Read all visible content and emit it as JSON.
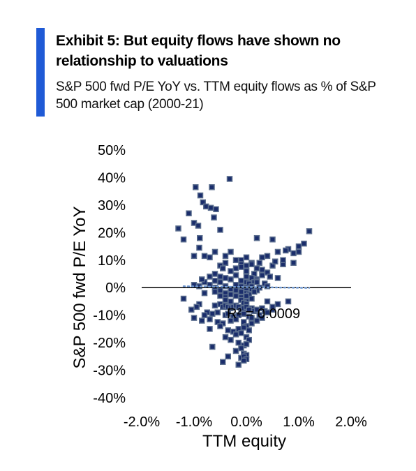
{
  "header": {
    "title": "Exhibit 5: But equity flows have shown no relationship to valuations",
    "subtitle": "S&P 500 fwd P/E YoY vs. TTM equity flows as % of S&P 500 market cap (2000-21)"
  },
  "colors": {
    "accent": "#1f5ad6",
    "marker_fill": "#1a2d6b",
    "marker_edge": "#5b6e8e",
    "trend": "#6f97cf"
  },
  "chart_data": {
    "type": "scatter",
    "title": "",
    "xlabel": "TTM equity",
    "ylabel": "S&P 500 fwd P/E YoY",
    "xlim": [
      -0.02,
      0.02
    ],
    "ylim": [
      -0.4,
      0.5
    ],
    "x_ticks": [
      "-2.0%",
      "-1.0%",
      "0.0%",
      "1.0%",
      "2.0%"
    ],
    "y_ticks": [
      "50%",
      "40%",
      "30%",
      "20%",
      "10%",
      "0%",
      "-10%",
      "-20%",
      "-30%",
      "-40%"
    ],
    "annotation": "R² = 0.0009",
    "trendline": {
      "x": [
        -0.012,
        0.012
      ],
      "y": [
        0.005,
        -0.001
      ]
    },
    "grid": false,
    "series": [
      {
        "x": [
          -0.0032,
          -0.0097,
          -0.0066,
          -0.011,
          -0.0088,
          -0.0083,
          -0.0077,
          -0.0068,
          -0.0058,
          -0.0062,
          -0.012,
          -0.01,
          -0.0092,
          -0.0089,
          -0.005,
          -0.013,
          -0.009,
          -0.006,
          -0.008,
          -0.01,
          -0.007,
          -0.004,
          -0.003,
          -0.001,
          0.002,
          0.005,
          0.008,
          0.01,
          0.012,
          0.011,
          0.01,
          0.009,
          0.0075,
          0.006,
          0.004,
          0.003,
          0.001,
          0.0,
          -0.001,
          -0.002,
          0.0,
          0.001,
          0.0025,
          0.005,
          0.0055,
          0.007,
          0.009,
          -0.005,
          -0.0045,
          -0.004,
          -0.003,
          -0.002,
          -0.001,
          0.0,
          0.0015,
          0.002,
          0.003,
          0.004,
          -0.006,
          -0.007,
          -0.005,
          -0.004,
          -0.002,
          0.0,
          0.001,
          0.002,
          0.003,
          0.0045,
          0.006,
          -0.008,
          -0.0085,
          -0.006,
          -0.005,
          -0.003,
          -0.001,
          0.0,
          0.0005,
          0.0015,
          0.002,
          0.0035,
          -0.01,
          -0.009,
          -0.007,
          -0.006,
          -0.004,
          -0.002,
          -0.001,
          0.0,
          0.001,
          0.0025,
          0.004,
          -0.006,
          -0.005,
          -0.003,
          -0.002,
          -0.0005,
          0.0,
          0.001,
          0.002,
          -0.008,
          -0.006,
          -0.004,
          -0.003,
          -0.001,
          0.0,
          0.0005,
          0.0015,
          -0.005,
          -0.004,
          -0.002,
          -0.001,
          0.0,
          0.001,
          -0.004,
          -0.003,
          -0.001,
          0.0,
          -0.0005,
          0.0,
          -0.009,
          -0.006,
          -0.005,
          -0.0045,
          -0.004,
          -0.0035,
          -0.003,
          -0.0025,
          -0.002,
          -0.0015,
          -0.001,
          -0.0005,
          0.0,
          0.0005,
          0.001,
          0.0015,
          0.002,
          0.003,
          0.0035,
          0.005,
          -0.0075,
          -0.0065,
          -0.0055,
          -0.004,
          -0.0035,
          -0.0025,
          -0.0015,
          -0.0005,
          0.0005,
          0.001,
          0.0025,
          0.004,
          -0.01,
          -0.0085,
          -0.007,
          -0.0055,
          -0.0045,
          -0.003,
          -0.002,
          -0.0005,
          0.0,
          0.001,
          0.002,
          0.003,
          -0.007,
          -0.005,
          -0.0035,
          -0.0025,
          -0.0015,
          -0.0005,
          0.0005,
          -0.004,
          -0.002,
          -0.001,
          0.0,
          0.0005,
          -0.003,
          -0.0015,
          -0.0005,
          0.0,
          -0.002,
          -0.001,
          -0.0005,
          0.0,
          -0.001,
          -0.0005,
          0.0,
          -0.0015,
          -0.0005,
          -0.012,
          -0.0105,
          -0.0095,
          -0.008,
          -0.0065,
          0.0,
          0.002,
          0.004,
          0.006,
          0.008,
          0.007,
          0.005,
          -0.0045,
          -0.0035,
          0.0005
        ],
        "y": [
          0.395,
          0.365,
          0.365,
          0.27,
          0.335,
          0.31,
          0.295,
          0.29,
          0.285,
          0.255,
          0.175,
          0.235,
          0.225,
          0.18,
          0.21,
          0.215,
          0.145,
          0.13,
          0.115,
          0.115,
          0.11,
          0.115,
          0.13,
          0.1,
          0.18,
          0.175,
          0.14,
          0.13,
          0.205,
          0.16,
          0.15,
          0.125,
          0.135,
          0.13,
          0.115,
          0.11,
          0.09,
          0.08,
          0.085,
          0.1,
          0.11,
          0.085,
          0.09,
          0.08,
          0.095,
          0.085,
          0.09,
          0.08,
          0.07,
          0.09,
          0.06,
          0.07,
          0.075,
          0.06,
          0.05,
          0.07,
          0.065,
          0.055,
          0.05,
          0.04,
          0.04,
          0.035,
          0.045,
          0.04,
          0.035,
          0.03,
          0.045,
          0.04,
          0.035,
          0.02,
          0.03,
          0.025,
          0.02,
          0.03,
          0.025,
          0.02,
          0.015,
          0.02,
          0.025,
          0.015,
          0.01,
          0.005,
          0.01,
          0.0,
          0.005,
          0.01,
          0.005,
          0.0,
          0.005,
          0.0,
          0.005,
          -0.005,
          -0.01,
          -0.005,
          -0.01,
          -0.005,
          -0.01,
          -0.005,
          -0.01,
          -0.02,
          -0.015,
          -0.02,
          -0.025,
          -0.015,
          -0.02,
          -0.025,
          -0.015,
          -0.03,
          -0.035,
          -0.03,
          -0.035,
          -0.03,
          -0.04,
          -0.045,
          -0.05,
          -0.045,
          -0.05,
          -0.055,
          -0.06,
          -0.06,
          -0.065,
          -0.06,
          -0.07,
          -0.065,
          -0.07,
          -0.075,
          -0.07,
          -0.065,
          -0.07,
          -0.08,
          -0.075,
          -0.07,
          -0.08,
          -0.075,
          -0.085,
          -0.08,
          -0.075,
          -0.085,
          -0.08,
          -0.09,
          -0.095,
          -0.09,
          -0.1,
          -0.095,
          -0.105,
          -0.1,
          -0.095,
          -0.105,
          -0.11,
          -0.1,
          -0.09,
          -0.11,
          -0.12,
          -0.115,
          -0.125,
          -0.13,
          -0.12,
          -0.115,
          -0.125,
          -0.14,
          -0.13,
          -0.12,
          -0.11,
          -0.15,
          -0.14,
          -0.155,
          -0.16,
          -0.15,
          -0.145,
          -0.155,
          -0.18,
          -0.17,
          -0.165,
          -0.18,
          -0.19,
          -0.19,
          -0.2,
          -0.21,
          -0.205,
          -0.23,
          -0.22,
          -0.24,
          -0.245,
          -0.255,
          -0.25,
          -0.26,
          -0.28,
          -0.265,
          -0.04,
          -0.08,
          -0.07,
          -0.1,
          -0.215,
          0.06,
          0.02,
          -0.05,
          -0.06,
          -0.05,
          0.1,
          -0.07,
          -0.27,
          -0.25,
          -0.08
        ]
      }
    ]
  }
}
